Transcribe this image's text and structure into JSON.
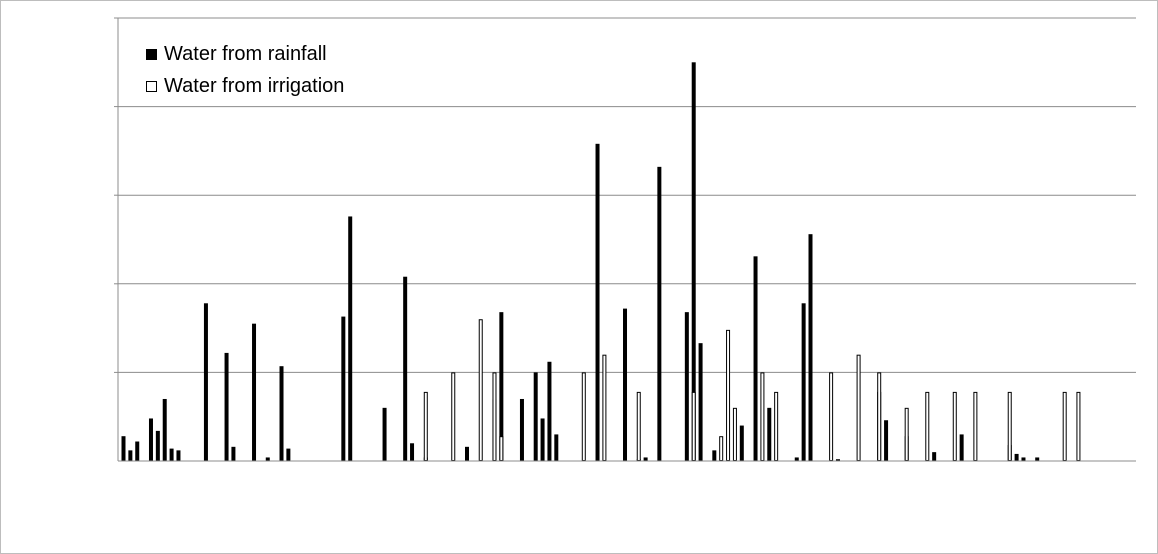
{
  "chart_data": {
    "type": "bar",
    "title": "",
    "xlabel": "",
    "ylabel": "",
    "ylim": [
      0,
      5
    ],
    "y_gridlines": [
      1,
      2,
      3,
      4,
      5
    ],
    "grid": true,
    "legend_position": "top-left",
    "colors": {
      "rainfall": "#000000",
      "irrigation": "#ffffff",
      "outline": "#000000",
      "grid": "#8c8c8c"
    },
    "series": [
      {
        "name": "Water from rainfall",
        "points": [
          {
            "x": 1,
            "y": 0.28
          },
          {
            "x": 2,
            "y": 0.12
          },
          {
            "x": 3,
            "y": 0.22
          },
          {
            "x": 5,
            "y": 0.48
          },
          {
            "x": 6,
            "y": 0.34
          },
          {
            "x": 7,
            "y": 0.7
          },
          {
            "x": 8,
            "y": 0.14
          },
          {
            "x": 9,
            "y": 0.12
          },
          {
            "x": 13,
            "y": 1.78
          },
          {
            "x": 16,
            "y": 1.22
          },
          {
            "x": 17,
            "y": 0.16
          },
          {
            "x": 20,
            "y": 1.55
          },
          {
            "x": 22,
            "y": 0.04
          },
          {
            "x": 24,
            "y": 1.07
          },
          {
            "x": 25,
            "y": 0.14
          },
          {
            "x": 33,
            "y": 1.63
          },
          {
            "x": 34,
            "y": 2.76
          },
          {
            "x": 39,
            "y": 0.6
          },
          {
            "x": 42,
            "y": 2.08
          },
          {
            "x": 43,
            "y": 0.2
          },
          {
            "x": 45,
            "y": 0.04
          },
          {
            "x": 51,
            "y": 0.16
          },
          {
            "x": 55,
            "y": 0.7
          },
          {
            "x": 56,
            "y": 1.68
          },
          {
            "x": 59,
            "y": 0.7
          },
          {
            "x": 61,
            "y": 1.0
          },
          {
            "x": 62,
            "y": 0.48
          },
          {
            "x": 63,
            "y": 1.12
          },
          {
            "x": 64,
            "y": 0.3
          },
          {
            "x": 70,
            "y": 3.58
          },
          {
            "x": 74,
            "y": 1.72
          },
          {
            "x": 76,
            "y": 0.02
          },
          {
            "x": 77,
            "y": 0.04
          },
          {
            "x": 79,
            "y": 3.32
          },
          {
            "x": 83,
            "y": 1.68
          },
          {
            "x": 84,
            "y": 4.5
          },
          {
            "x": 85,
            "y": 1.33
          },
          {
            "x": 87,
            "y": 0.12
          },
          {
            "x": 91,
            "y": 0.4
          },
          {
            "x": 93,
            "y": 2.31
          },
          {
            "x": 95,
            "y": 0.6
          },
          {
            "x": 99,
            "y": 0.04
          },
          {
            "x": 100,
            "y": 1.78
          },
          {
            "x": 101,
            "y": 2.56
          },
          {
            "x": 105,
            "y": 0.02
          },
          {
            "x": 111,
            "y": 0.78
          },
          {
            "x": 112,
            "y": 0.46
          },
          {
            "x": 115,
            "y": 0.28
          },
          {
            "x": 119,
            "y": 0.1
          },
          {
            "x": 123,
            "y": 0.3
          },
          {
            "x": 130,
            "y": 0.18
          },
          {
            "x": 131,
            "y": 0.08
          },
          {
            "x": 132,
            "y": 0.04
          },
          {
            "x": 134,
            "y": 0.04
          }
        ]
      },
      {
        "name": "Water from irrigation",
        "points": [
          {
            "x": 45,
            "y": 0.78
          },
          {
            "x": 49,
            "y": 1.0
          },
          {
            "x": 53,
            "y": 1.6
          },
          {
            "x": 55,
            "y": 1.0
          },
          {
            "x": 56,
            "y": 0.28
          },
          {
            "x": 68,
            "y": 1.0
          },
          {
            "x": 71,
            "y": 1.2
          },
          {
            "x": 76,
            "y": 0.78
          },
          {
            "x": 84,
            "y": 0.78
          },
          {
            "x": 88,
            "y": 0.28
          },
          {
            "x": 89,
            "y": 1.48
          },
          {
            "x": 90,
            "y": 0.6
          },
          {
            "x": 94,
            "y": 1.0
          },
          {
            "x": 96,
            "y": 0.78
          },
          {
            "x": 104,
            "y": 1.0
          },
          {
            "x": 108,
            "y": 1.2
          },
          {
            "x": 111,
            "y": 1.0
          },
          {
            "x": 115,
            "y": 0.6
          },
          {
            "x": 118,
            "y": 0.78
          },
          {
            "x": 122,
            "y": 0.78
          },
          {
            "x": 125,
            "y": 0.78
          },
          {
            "x": 130,
            "y": 0.78
          },
          {
            "x": 138,
            "y": 0.78
          },
          {
            "x": 140,
            "y": 0.78
          }
        ]
      }
    ]
  }
}
